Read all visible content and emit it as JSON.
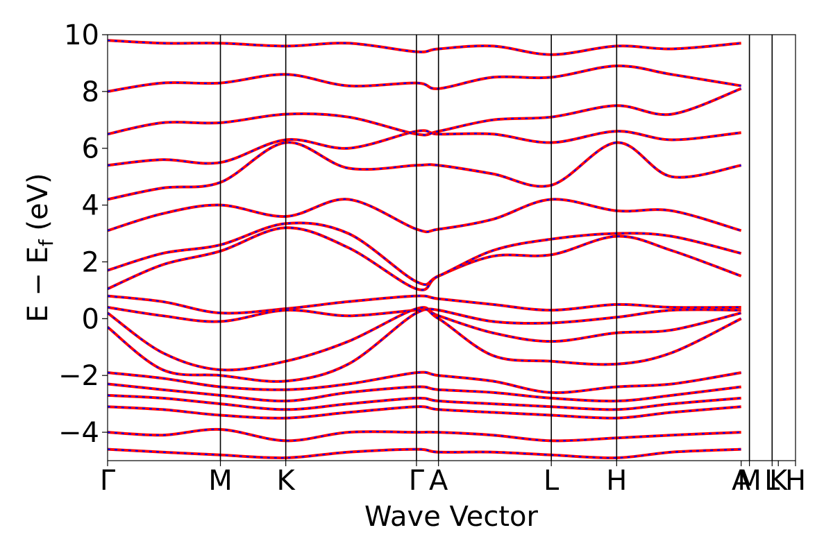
{
  "chart_data": {
    "type": "line",
    "title": "",
    "xlabel": "Wave Vector",
    "ylabel": "E − E_f (eV)",
    "ylabel_parts": {
      "pre": "E − E",
      "sub": "f",
      "post": " (eV)"
    },
    "ylim": [
      -5,
      10
    ],
    "xlim": [
      0,
      1.0
    ],
    "yticks": [
      -4,
      -2,
      0,
      2,
      4,
      6,
      8,
      10
    ],
    "ytick_labels": [
      "−4",
      "−2",
      "0",
      "2",
      "4",
      "6",
      "8",
      "10"
    ],
    "high_symmetry_points": [
      {
        "label": "Γ",
        "x": 0.0
      },
      {
        "label": "M",
        "x": 0.164
      },
      {
        "label": "K",
        "x": 0.259
      },
      {
        "label": "Γ",
        "x": 0.449
      },
      {
        "label": "A",
        "x": 0.481
      },
      {
        "label": "L",
        "x": 0.645
      },
      {
        "label": "H",
        "x": 0.74
      },
      {
        "label": "A",
        "x": 0.921
      },
      {
        "label": "M",
        "x": 0.933
      },
      {
        "label": "L",
        "x": 0.966
      },
      {
        "label": "K",
        "x": 0.975
      },
      {
        "label": "H",
        "x": 1.0
      }
    ],
    "vertical_lines_x": [
      0.164,
      0.259,
      0.449,
      0.481,
      0.645,
      0.74,
      0.933,
      0.966
    ],
    "series_styles": [
      {
        "color": "#ff0000",
        "dash": "solid"
      },
      {
        "color": "#0000ff",
        "dash": "dashed"
      }
    ],
    "series": [
      {
        "values": [
          [
            0,
            1.05
          ],
          [
            0.08,
            1.9
          ],
          [
            0.164,
            2.38
          ],
          [
            0.259,
            3.2
          ],
          [
            0.35,
            2.5
          ],
          [
            0.449,
            1.05
          ],
          [
            0.481,
            1.5
          ],
          [
            0.56,
            2.2
          ],
          [
            0.645,
            2.25
          ],
          [
            0.74,
            2.9
          ],
          [
            0.82,
            2.4
          ],
          [
            0.921,
            1.5
          ]
        ]
      },
      {
        "values": [
          [
            0,
            1.7
          ],
          [
            0.08,
            2.3
          ],
          [
            0.164,
            2.6
          ],
          [
            0.259,
            3.35
          ],
          [
            0.35,
            3.0
          ],
          [
            0.449,
            1.3
          ],
          [
            0.481,
            1.5
          ],
          [
            0.56,
            2.4
          ],
          [
            0.645,
            2.8
          ],
          [
            0.74,
            3.0
          ],
          [
            0.82,
            2.9
          ],
          [
            0.921,
            2.3
          ]
        ]
      },
      {
        "values": [
          [
            0,
            3.1
          ],
          [
            0.08,
            3.7
          ],
          [
            0.164,
            4.0
          ],
          [
            0.259,
            3.6
          ],
          [
            0.35,
            4.2
          ],
          [
            0.449,
            3.15
          ],
          [
            0.481,
            3.15
          ],
          [
            0.56,
            3.5
          ],
          [
            0.645,
            4.2
          ],
          [
            0.74,
            3.8
          ],
          [
            0.82,
            3.8
          ],
          [
            0.921,
            3.1
          ]
        ]
      },
      {
        "values": [
          [
            0,
            4.2
          ],
          [
            0.08,
            4.6
          ],
          [
            0.164,
            4.8
          ],
          [
            0.259,
            6.2
          ],
          [
            0.35,
            5.3
          ],
          [
            0.449,
            5.4
          ],
          [
            0.481,
            5.4
          ],
          [
            0.56,
            5.1
          ],
          [
            0.645,
            4.7
          ],
          [
            0.74,
            6.2
          ],
          [
            0.82,
            5.0
          ],
          [
            0.921,
            5.4
          ]
        ]
      },
      {
        "values": [
          [
            0,
            5.4
          ],
          [
            0.08,
            5.6
          ],
          [
            0.164,
            5.5
          ],
          [
            0.259,
            6.3
          ],
          [
            0.35,
            6.0
          ],
          [
            0.449,
            6.6
          ],
          [
            0.481,
            6.5
          ],
          [
            0.56,
            6.5
          ],
          [
            0.645,
            6.2
          ],
          [
            0.74,
            6.6
          ],
          [
            0.82,
            6.3
          ],
          [
            0.921,
            6.55
          ]
        ]
      },
      {
        "values": [
          [
            0,
            6.5
          ],
          [
            0.08,
            6.9
          ],
          [
            0.164,
            6.9
          ],
          [
            0.259,
            7.2
          ],
          [
            0.35,
            7.1
          ],
          [
            0.449,
            6.5
          ],
          [
            0.481,
            6.6
          ],
          [
            0.56,
            7.0
          ],
          [
            0.645,
            7.1
          ],
          [
            0.74,
            7.5
          ],
          [
            0.82,
            7.2
          ],
          [
            0.921,
            8.1
          ]
        ]
      },
      {
        "values": [
          [
            0,
            8.0
          ],
          [
            0.08,
            8.3
          ],
          [
            0.164,
            8.3
          ],
          [
            0.259,
            8.6
          ],
          [
            0.35,
            8.2
          ],
          [
            0.449,
            8.3
          ],
          [
            0.481,
            8.1
          ],
          [
            0.56,
            8.5
          ],
          [
            0.645,
            8.5
          ],
          [
            0.74,
            8.9
          ],
          [
            0.82,
            8.6
          ],
          [
            0.921,
            8.2
          ]
        ]
      },
      {
        "values": [
          [
            0,
            9.8
          ],
          [
            0.08,
            9.7
          ],
          [
            0.164,
            9.7
          ],
          [
            0.259,
            9.6
          ],
          [
            0.35,
            9.7
          ],
          [
            0.449,
            9.4
          ],
          [
            0.481,
            9.5
          ],
          [
            0.56,
            9.6
          ],
          [
            0.645,
            9.3
          ],
          [
            0.74,
            9.6
          ],
          [
            0.82,
            9.5
          ],
          [
            0.921,
            9.7
          ]
        ]
      },
      {
        "values": [
          [
            0,
            0.8
          ],
          [
            0.08,
            0.6
          ],
          [
            0.164,
            0.2
          ],
          [
            0.259,
            0.35
          ],
          [
            0.35,
            0.6
          ],
          [
            0.449,
            0.8
          ],
          [
            0.481,
            0.7
          ],
          [
            0.56,
            0.5
          ],
          [
            0.645,
            0.3
          ],
          [
            0.74,
            0.5
          ],
          [
            0.82,
            0.4
          ],
          [
            0.921,
            0.4
          ]
        ]
      },
      {
        "values": [
          [
            0,
            0.4
          ],
          [
            0.08,
            0.1
          ],
          [
            0.164,
            -0.1
          ],
          [
            0.259,
            0.3
          ],
          [
            0.35,
            0.1
          ],
          [
            0.449,
            0.3
          ],
          [
            0.481,
            0.3
          ],
          [
            0.56,
            -0.1
          ],
          [
            0.645,
            -0.15
          ],
          [
            0.74,
            0.05
          ],
          [
            0.82,
            0.3
          ],
          [
            0.921,
            0.3
          ]
        ]
      },
      {
        "values": [
          [
            0,
            0.2
          ],
          [
            0.08,
            -1.2
          ],
          [
            0.164,
            -1.8
          ],
          [
            0.259,
            -1.5
          ],
          [
            0.35,
            -0.8
          ],
          [
            0.449,
            0.35
          ],
          [
            0.481,
            0.1
          ],
          [
            0.56,
            -0.5
          ],
          [
            0.645,
            -0.8
          ],
          [
            0.74,
            -0.5
          ],
          [
            0.82,
            -0.4
          ],
          [
            0.921,
            0.2
          ]
        ]
      },
      {
        "values": [
          [
            0,
            -0.3
          ],
          [
            0.08,
            -1.8
          ],
          [
            0.164,
            -2.0
          ],
          [
            0.259,
            -2.2
          ],
          [
            0.35,
            -1.6
          ],
          [
            0.449,
            0.2
          ],
          [
            0.481,
            0.0
          ],
          [
            0.56,
            -1.3
          ],
          [
            0.645,
            -1.5
          ],
          [
            0.74,
            -1.6
          ],
          [
            0.82,
            -1.2
          ],
          [
            0.921,
            0.0
          ]
        ]
      },
      {
        "values": [
          [
            0,
            -1.9
          ],
          [
            0.08,
            -2.1
          ],
          [
            0.164,
            -2.4
          ],
          [
            0.259,
            -2.5
          ],
          [
            0.35,
            -2.3
          ],
          [
            0.449,
            -1.9
          ],
          [
            0.481,
            -2.0
          ],
          [
            0.56,
            -2.2
          ],
          [
            0.645,
            -2.6
          ],
          [
            0.74,
            -2.4
          ],
          [
            0.82,
            -2.3
          ],
          [
            0.921,
            -1.9
          ]
        ]
      },
      {
        "values": [
          [
            0,
            -2.3
          ],
          [
            0.08,
            -2.5
          ],
          [
            0.164,
            -2.7
          ],
          [
            0.259,
            -2.9
          ],
          [
            0.35,
            -2.6
          ],
          [
            0.449,
            -2.4
          ],
          [
            0.481,
            -2.5
          ],
          [
            0.56,
            -2.6
          ],
          [
            0.645,
            -2.8
          ],
          [
            0.74,
            -2.9
          ],
          [
            0.82,
            -2.7
          ],
          [
            0.921,
            -2.4
          ]
        ]
      },
      {
        "values": [
          [
            0,
            -2.7
          ],
          [
            0.08,
            -2.8
          ],
          [
            0.164,
            -3.0
          ],
          [
            0.259,
            -3.2
          ],
          [
            0.35,
            -3.0
          ],
          [
            0.449,
            -2.8
          ],
          [
            0.481,
            -2.9
          ],
          [
            0.56,
            -3.0
          ],
          [
            0.645,
            -3.1
          ],
          [
            0.74,
            -3.2
          ],
          [
            0.82,
            -3.0
          ],
          [
            0.921,
            -2.8
          ]
        ]
      },
      {
        "values": [
          [
            0,
            -3.1
          ],
          [
            0.08,
            -3.2
          ],
          [
            0.164,
            -3.4
          ],
          [
            0.259,
            -3.5
          ],
          [
            0.35,
            -3.3
          ],
          [
            0.449,
            -3.1
          ],
          [
            0.481,
            -3.2
          ],
          [
            0.56,
            -3.3
          ],
          [
            0.645,
            -3.4
          ],
          [
            0.74,
            -3.5
          ],
          [
            0.82,
            -3.3
          ],
          [
            0.921,
            -3.1
          ]
        ]
      },
      {
        "values": [
          [
            0,
            -4.0
          ],
          [
            0.08,
            -4.1
          ],
          [
            0.164,
            -3.9
          ],
          [
            0.259,
            -4.3
          ],
          [
            0.35,
            -4.0
          ],
          [
            0.449,
            -4.0
          ],
          [
            0.481,
            -4.0
          ],
          [
            0.56,
            -4.1
          ],
          [
            0.645,
            -4.3
          ],
          [
            0.74,
            -4.2
          ],
          [
            0.82,
            -4.1
          ],
          [
            0.921,
            -4.0
          ]
        ]
      },
      {
        "values": [
          [
            0,
            -4.6
          ],
          [
            0.08,
            -4.7
          ],
          [
            0.164,
            -4.8
          ],
          [
            0.259,
            -4.9
          ],
          [
            0.35,
            -4.7
          ],
          [
            0.449,
            -4.6
          ],
          [
            0.481,
            -4.7
          ],
          [
            0.56,
            -4.7
          ],
          [
            0.645,
            -4.8
          ],
          [
            0.74,
            -4.9
          ],
          [
            0.82,
            -4.7
          ],
          [
            0.921,
            -4.6
          ]
        ]
      }
    ]
  }
}
